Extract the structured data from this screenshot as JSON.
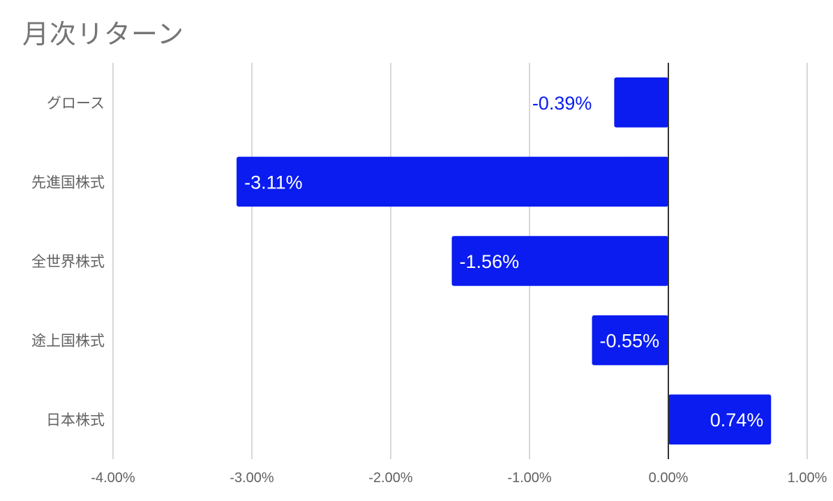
{
  "chart_data": {
    "type": "bar",
    "orientation": "horizontal",
    "title": "月次リターン",
    "categories": [
      "グロース",
      "先進国株式",
      "全世界株式",
      "途上国株式",
      "日本株式"
    ],
    "values": [
      -0.39,
      -3.11,
      -1.56,
      -0.55,
      0.74
    ],
    "value_labels": [
      "-0.39%",
      "-3.11%",
      "-1.56%",
      "-0.55%",
      "0.74%"
    ],
    "xlim": [
      -4.0,
      1.0
    ],
    "xticks": [
      -4,
      -3,
      -2,
      -1,
      0,
      1
    ],
    "xtick_labels": [
      "-4.00%",
      "-3.00%",
      "-2.00%",
      "-1.00%",
      "0.00%",
      "1.00%"
    ],
    "xlabel": "",
    "ylabel": "",
    "grid": true,
    "legend": "none",
    "colors": {
      "bar": "#0a1cf0",
      "label_inside": "#ffffff",
      "label_outside": "#0a1cf0",
      "grid": "#cccccc",
      "zero_line": "#333333",
      "text": "#616161"
    }
  }
}
